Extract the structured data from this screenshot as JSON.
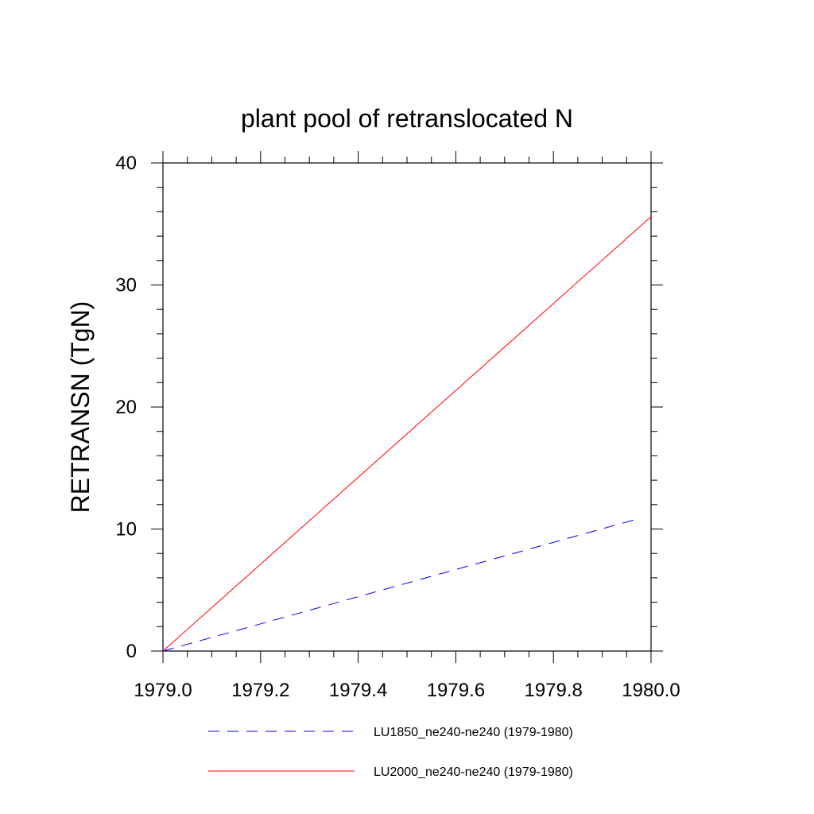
{
  "chart_data": {
    "type": "line",
    "title": "plant pool of retranslocated N",
    "xlabel": "",
    "ylabel": "RETRANSN  (TgN)",
    "xlim": [
      1979.0,
      1980.0
    ],
    "ylim": [
      0,
      40
    ],
    "x_ticks": [
      "1979.0",
      "1979.2",
      "1979.4",
      "1979.6",
      "1979.8",
      "1980.0"
    ],
    "y_ticks": [
      "0",
      "10",
      "20",
      "30",
      "40"
    ],
    "grid": false,
    "legend_position": "bottom",
    "series": [
      {
        "name": "LU1850_ne240-ne240 (1979-1980)",
        "color": "#0000ff",
        "style": "dashed",
        "x": [
          1979.0,
          1979.979
        ],
        "y": [
          0,
          10.9
        ]
      },
      {
        "name": "LU2000_ne240-ne240 (1979-1980)",
        "color": "#ff0000",
        "style": "solid",
        "x": [
          1979.0,
          1980.0
        ],
        "y": [
          0,
          35.6
        ]
      }
    ]
  }
}
